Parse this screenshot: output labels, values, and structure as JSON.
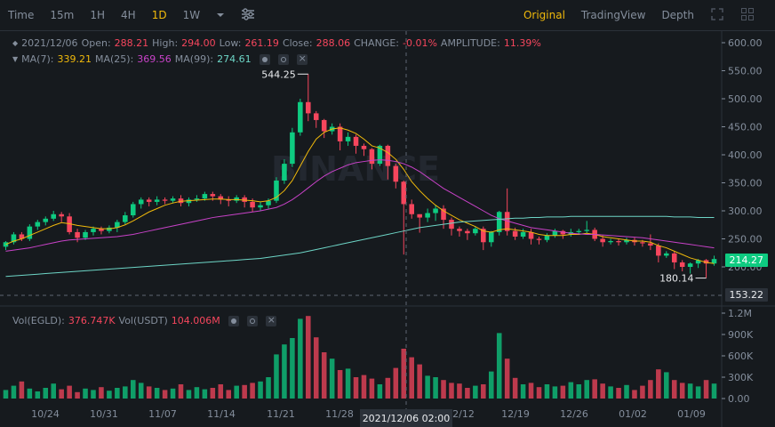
{
  "toolbar": {
    "intervals": [
      "Time",
      "15m",
      "1H",
      "4H",
      "1D",
      "1W"
    ],
    "active_interval": "1D",
    "dropdown_icon": "chevron-down-icon",
    "settings_icon": "sliders-icon",
    "views": [
      "Original",
      "TradingView",
      "Depth"
    ],
    "active_view": "Original",
    "fullscreen_icon": "expand-icon",
    "layout_icon": "grid-icon"
  },
  "legend": {
    "date": "2021/12/06",
    "open_label": "Open:",
    "open": "288.21",
    "high_label": "High:",
    "high": "294.00",
    "low_label": "Low:",
    "low": "261.19",
    "close_label": "Close:",
    "close": "288.06",
    "change_label": "CHANGE:",
    "change": "-0.01%",
    "amplitude_label": "AMPLITUDE:",
    "amplitude": "11.39%",
    "ma7_label": "MA(7):",
    "ma7": "339.21",
    "ma25_label": "MA(25):",
    "ma25": "369.56",
    "ma99_label": "MA(99):",
    "ma99": "274.61"
  },
  "vol_legend": {
    "vol_egld_label": "Vol(EGLD):",
    "vol_egld": "376.747K",
    "vol_usdt_label": "Vol(USDT)",
    "vol_usdt": "104.006M"
  },
  "price_tags": {
    "current": "214.27",
    "crosshair": "153.22",
    "max_label": "544.25",
    "min_label": "180.14"
  },
  "crosshair_date": "2021/12/06 02:00",
  "watermark": "BINANCE",
  "colors": {
    "up": "#0ecb81",
    "down": "#f6465d",
    "ma7": "#f0b90b",
    "ma25": "#c842c8",
    "ma99": "#6dd5c6",
    "bg": "#161a1e",
    "grid": "#2b3139"
  },
  "chart_data": {
    "type": "candlestick",
    "y_ticks": [
      "600.00",
      "550.00",
      "500.00",
      "450.00",
      "400.00",
      "350.00",
      "300.00",
      "250.00",
      "200.00"
    ],
    "ylim": [
      150,
      610
    ],
    "vol_ticks": [
      "1.2M",
      "900K",
      "600K",
      "300K",
      "0.00"
    ],
    "vol_lim": [
      0,
      1200000
    ],
    "x_labels": [
      "10/24",
      "10/31",
      "11/07",
      "11/14",
      "11/21",
      "11/28",
      "12/12",
      "12/19",
      "12/26",
      "01/02",
      "01/09"
    ],
    "candles": [
      [
        236,
        244,
        230,
        246
      ],
      [
        244,
        258,
        240,
        262
      ],
      [
        258,
        250,
        246,
        262
      ],
      [
        250,
        272,
        246,
        276
      ],
      [
        272,
        280,
        266,
        284
      ],
      [
        280,
        286,
        274,
        290
      ],
      [
        286,
        294,
        282,
        300
      ],
      [
        294,
        290,
        280,
        298
      ],
      [
        290,
        262,
        258,
        296
      ],
      [
        262,
        252,
        244,
        268
      ],
      [
        252,
        262,
        248,
        266
      ],
      [
        262,
        268,
        256,
        272
      ],
      [
        268,
        264,
        258,
        272
      ],
      [
        264,
        270,
        260,
        274
      ],
      [
        270,
        280,
        262,
        284
      ],
      [
        280,
        292,
        276,
        298
      ],
      [
        292,
        312,
        288,
        316
      ],
      [
        312,
        320,
        304,
        324
      ],
      [
        320,
        316,
        308,
        324
      ],
      [
        316,
        320,
        310,
        326
      ],
      [
        320,
        318,
        312,
        324
      ],
      [
        318,
        322,
        314,
        326
      ],
      [
        322,
        314,
        308,
        328
      ],
      [
        314,
        320,
        308,
        324
      ],
      [
        320,
        322,
        316,
        328
      ],
      [
        322,
        330,
        318,
        334
      ],
      [
        330,
        326,
        318,
        334
      ],
      [
        326,
        320,
        312,
        330
      ],
      [
        320,
        318,
        308,
        326
      ],
      [
        318,
        324,
        314,
        328
      ],
      [
        324,
        316,
        306,
        328
      ],
      [
        316,
        306,
        298,
        322
      ],
      [
        306,
        310,
        300,
        316
      ],
      [
        310,
        318,
        304,
        322
      ],
      [
        318,
        354,
        314,
        360
      ],
      [
        354,
        384,
        348,
        392
      ],
      [
        384,
        440,
        378,
        448
      ],
      [
        440,
        494,
        434,
        500
      ],
      [
        494,
        474,
        460,
        544
      ],
      [
        474,
        462,
        448,
        478
      ],
      [
        462,
        442,
        430,
        464
      ],
      [
        442,
        450,
        436,
        456
      ],
      [
        450,
        424,
        408,
        456
      ],
      [
        424,
        432,
        416,
        440
      ],
      [
        432,
        416,
        402,
        436
      ],
      [
        416,
        410,
        398,
        420
      ],
      [
        410,
        384,
        374,
        412
      ],
      [
        384,
        416,
        380,
        418
      ],
      [
        416,
        380,
        356,
        418
      ],
      [
        380,
        352,
        340,
        384
      ],
      [
        352,
        312,
        222,
        354
      ],
      [
        312,
        294,
        286,
        320
      ],
      [
        294,
        288,
        261,
        294
      ],
      [
        288,
        296,
        280,
        304
      ],
      [
        296,
        304,
        282,
        310
      ],
      [
        304,
        284,
        268,
        310
      ],
      [
        284,
        268,
        256,
        288
      ],
      [
        268,
        264,
        254,
        272
      ],
      [
        264,
        260,
        248,
        268
      ],
      [
        260,
        268,
        256,
        272
      ],
      [
        268,
        244,
        230,
        272
      ],
      [
        244,
        262,
        236,
        264
      ],
      [
        262,
        298,
        256,
        300
      ],
      [
        298,
        264,
        256,
        340
      ],
      [
        264,
        254,
        248,
        270
      ],
      [
        254,
        262,
        250,
        268
      ],
      [
        262,
        250,
        240,
        268
      ],
      [
        250,
        248,
        240,
        254
      ],
      [
        248,
        256,
        244,
        260
      ],
      [
        256,
        264,
        252,
        268
      ],
      [
        264,
        258,
        250,
        266
      ],
      [
        258,
        262,
        254,
        268
      ],
      [
        262,
        264,
        258,
        268
      ],
      [
        264,
        266,
        260,
        282
      ],
      [
        266,
        250,
        246,
        270
      ],
      [
        250,
        244,
        236,
        256
      ],
      [
        244,
        246,
        240,
        250
      ],
      [
        246,
        244,
        238,
        250
      ],
      [
        244,
        248,
        240,
        252
      ],
      [
        248,
        244,
        238,
        252
      ],
      [
        244,
        242,
        236,
        248
      ],
      [
        242,
        238,
        230,
        258
      ],
      [
        238,
        220,
        208,
        242
      ],
      [
        220,
        224,
        216,
        228
      ],
      [
        224,
        208,
        196,
        228
      ],
      [
        208,
        200,
        192,
        212
      ],
      [
        200,
        206,
        188,
        208
      ],
      [
        206,
        212,
        198,
        214
      ],
      [
        212,
        206,
        180,
        214
      ],
      [
        206,
        214,
        202,
        220
      ]
    ],
    "volumes": [
      120,
      180,
      240,
      140,
      100,
      150,
      210,
      130,
      180,
      90,
      140,
      120,
      160,
      110,
      150,
      170,
      260,
      220,
      170,
      150,
      120,
      140,
      200,
      120,
      160,
      130,
      150,
      200,
      120,
      180,
      190,
      220,
      240,
      300,
      620,
      760,
      850,
      1120,
      1160,
      860,
      650,
      560,
      400,
      420,
      300,
      330,
      280,
      200,
      290,
      430,
      700,
      580,
      480,
      320,
      300,
      260,
      220,
      210,
      150,
      180,
      200,
      380,
      920,
      560,
      290,
      200,
      220,
      160,
      200,
      170,
      180,
      230,
      200,
      260,
      270,
      210,
      170,
      150,
      190,
      120,
      180,
      260,
      410,
      370,
      260,
      220,
      210,
      170,
      260,
      210
    ],
    "series": [
      {
        "name": "MA(7)",
        "values": [
          240,
          246,
          250,
          256,
          262,
          268,
          274,
          279,
          277,
          274,
          272,
          270,
          268,
          268,
          270,
          275,
          282,
          290,
          298,
          304,
          310,
          314,
          317,
          318,
          319,
          320,
          321,
          321,
          320,
          320,
          319,
          318,
          316,
          318,
          324,
          336,
          354,
          380,
          406,
          428,
          440,
          446,
          448,
          444,
          438,
          428,
          416,
          412,
          404,
          392,
          374,
          352,
          336,
          322,
          310,
          300,
          292,
          284,
          278,
          272,
          264,
          262,
          266,
          268,
          266,
          264,
          262,
          258,
          256,
          256,
          256,
          258,
          258,
          260,
          258,
          254,
          252,
          250,
          248,
          246,
          246,
          244,
          238,
          234,
          228,
          222,
          216,
          212,
          208,
          206
        ]
      },
      {
        "name": "MA(25)",
        "values": [
          228,
          230,
          232,
          234,
          237,
          240,
          243,
          246,
          248,
          249,
          250,
          251,
          252,
          253,
          254,
          256,
          258,
          261,
          264,
          267,
          270,
          273,
          276,
          279,
          282,
          285,
          288,
          290,
          292,
          294,
          296,
          298,
          300,
          303,
          306,
          312,
          320,
          330,
          341,
          352,
          362,
          370,
          376,
          382,
          386,
          388,
          390,
          391,
          390,
          388,
          384,
          378,
          370,
          360,
          350,
          340,
          332,
          324,
          316,
          308,
          300,
          292,
          286,
          282,
          278,
          274,
          270,
          268,
          266,
          264,
          262,
          260,
          259,
          258,
          258,
          257,
          256,
          255,
          254,
          253,
          252,
          250,
          248,
          246,
          244,
          242,
          240,
          238,
          236,
          234
        ]
      },
      {
        "name": "MA(99)",
        "values": [
          183,
          184,
          185,
          186,
          187,
          188,
          189,
          190,
          191,
          192,
          193,
          194,
          195,
          196,
          197,
          198,
          199,
          200,
          201,
          202,
          203,
          204,
          205,
          206,
          207,
          208,
          209,
          210,
          211,
          212,
          213,
          214,
          215,
          217,
          219,
          221,
          223,
          225,
          228,
          231,
          234,
          237,
          240,
          243,
          246,
          249,
          252,
          255,
          258,
          261,
          264,
          267,
          270,
          272,
          274,
          276,
          278,
          280,
          281,
          282,
          283,
          284,
          285,
          286,
          287,
          287,
          288,
          288,
          289,
          289,
          289,
          290,
          290,
          290,
          290,
          290,
          290,
          290,
          290,
          290,
          290,
          290,
          290,
          290,
          289,
          289,
          289,
          288,
          288,
          288
        ]
      }
    ]
  }
}
